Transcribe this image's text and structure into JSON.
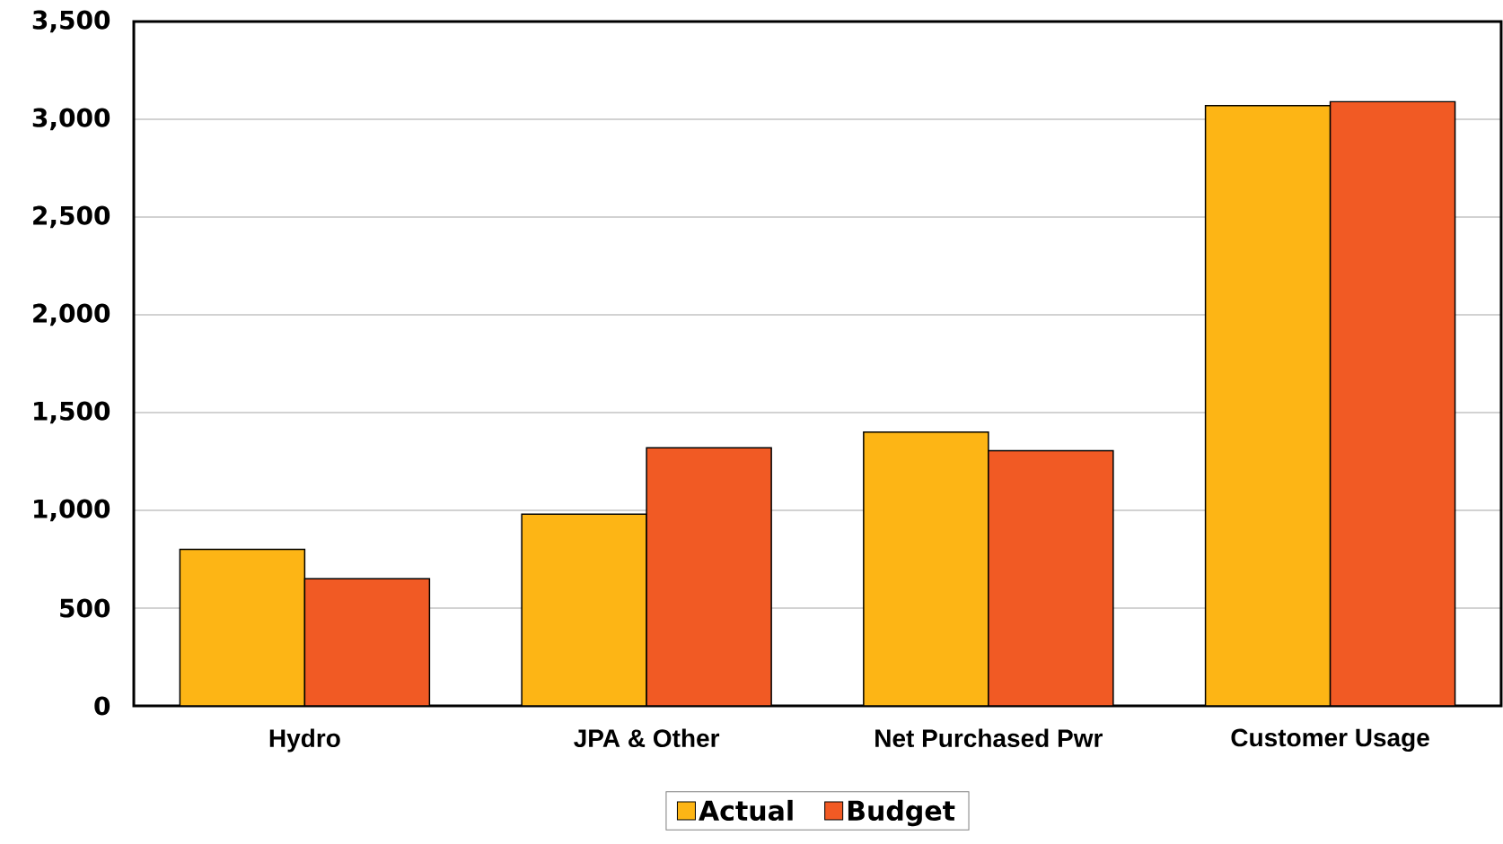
{
  "chart_data": {
    "type": "bar",
    "categories": [
      "Hydro",
      "JPA & Other",
      "Net Purchased Pwr",
      "Customer Usage"
    ],
    "series": [
      {
        "name": "Actual",
        "color": "#fdb515",
        "values": [
          800,
          980,
          1400,
          3070
        ]
      },
      {
        "name": "Budget",
        "color": "#f15a24",
        "values": [
          650,
          1320,
          1305,
          3090
        ]
      }
    ],
    "ylim": [
      0,
      3500
    ],
    "yticks": [
      {
        "value": 0,
        "label": "0"
      },
      {
        "value": 500,
        "label": "500"
      },
      {
        "value": 1000,
        "label": "1,000"
      },
      {
        "value": 1500,
        "label": "1,500"
      },
      {
        "value": 2000,
        "label": "2,000"
      },
      {
        "value": 2500,
        "label": "2,500"
      },
      {
        "value": 3000,
        "label": "3,000"
      },
      {
        "value": 3500,
        "label": "3,500"
      }
    ],
    "grid": "y",
    "legend": "bottom"
  }
}
